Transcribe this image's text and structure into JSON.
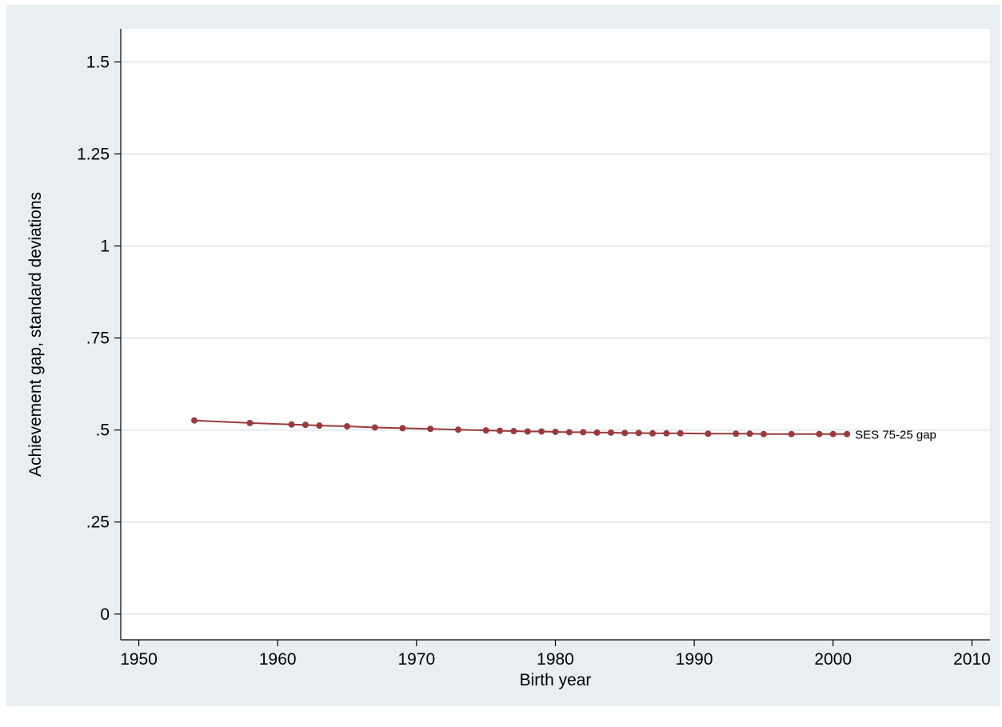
{
  "chart_data": {
    "type": "line",
    "title": "",
    "xlabel": "Birth year",
    "ylabel": "Achievement gap, standard deviations",
    "xlim": [
      1948.7,
      2011.3
    ],
    "ylim": [
      -0.07,
      1.59
    ],
    "xticks": [
      1950,
      1960,
      1970,
      1980,
      1990,
      2000,
      2010
    ],
    "xtick_labels": [
      "1950",
      "1960",
      "1970",
      "1980",
      "1990",
      "2000",
      "2010"
    ],
    "yticks": [
      0,
      0.25,
      0.5,
      0.75,
      1,
      1.25,
      1.5
    ],
    "ytick_labels": [
      "0",
      ".25",
      ".5",
      ".75",
      "1",
      "1.25",
      "1.5"
    ],
    "grid": true,
    "legend": "none",
    "series": [
      {
        "name": "SES 75-25 gap",
        "color": "#9a3a3a",
        "x": [
          1954,
          1958,
          1961,
          1962,
          1963,
          1965,
          1967,
          1969,
          1971,
          1973,
          1975,
          1976,
          1977,
          1978,
          1979,
          1980,
          1981,
          1982,
          1983,
          1984,
          1985,
          1986,
          1987,
          1988,
          1989,
          1991,
          1993,
          1994,
          1995,
          1997,
          1999,
          2000,
          2001
        ],
        "y": [
          0.526,
          0.519,
          0.515,
          0.514,
          0.512,
          0.51,
          0.507,
          0.505,
          0.503,
          0.501,
          0.499,
          0.498,
          0.497,
          0.496,
          0.496,
          0.495,
          0.494,
          0.494,
          0.493,
          0.493,
          0.492,
          0.492,
          0.491,
          0.491,
          0.491,
          0.49,
          0.49,
          0.49,
          0.489,
          0.489,
          0.489,
          0.489,
          0.489
        ]
      }
    ]
  }
}
